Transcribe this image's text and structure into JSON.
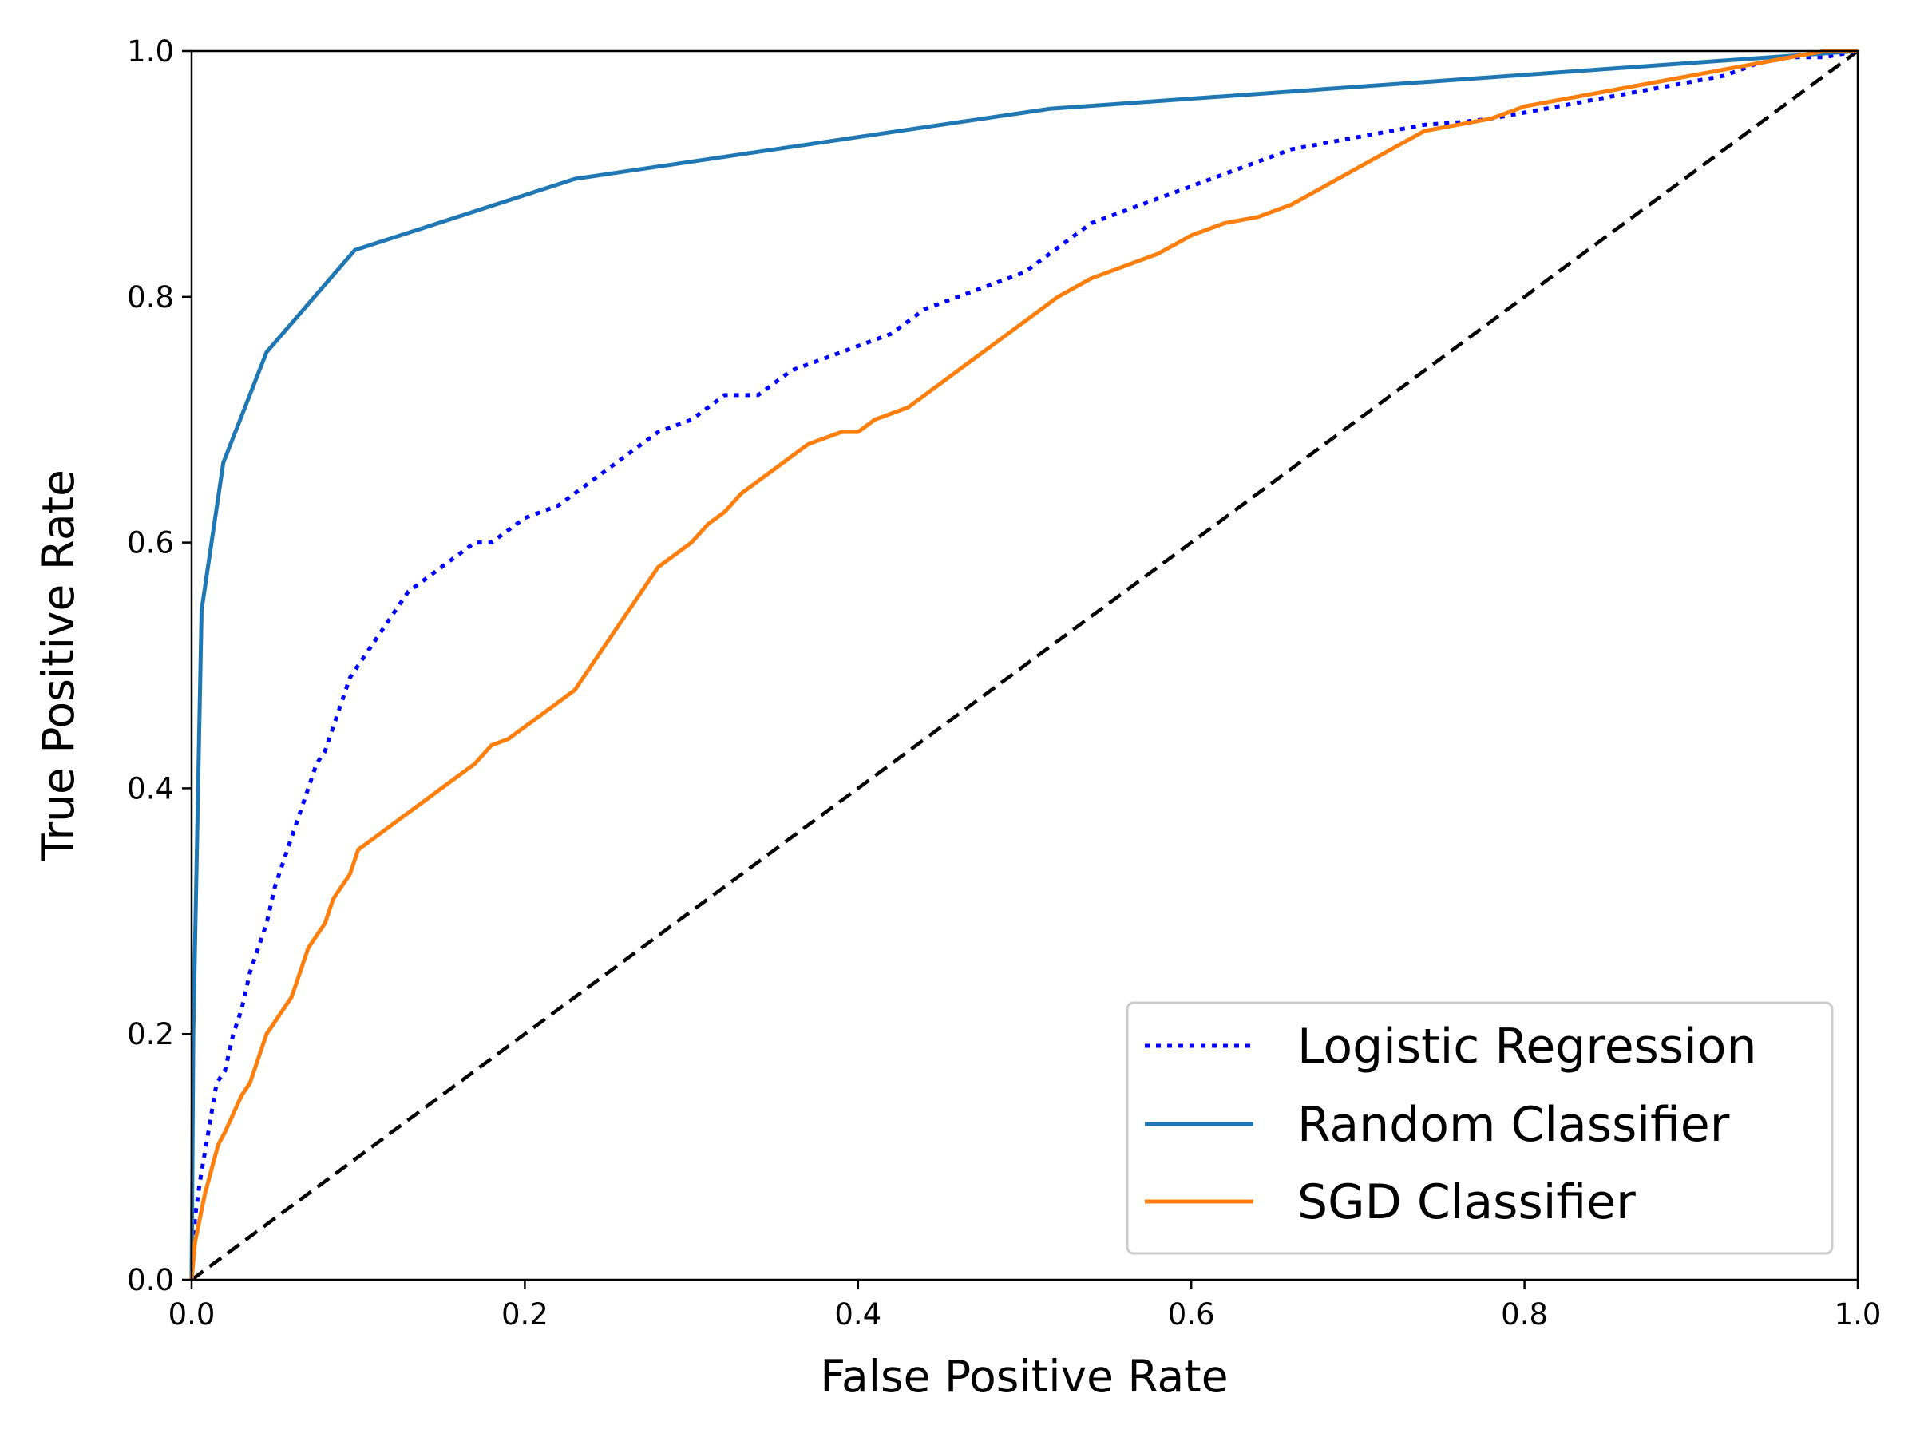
{
  "chart_data": {
    "type": "line",
    "title": "",
    "xlabel": "False Positive Rate",
    "ylabel": "True Positive Rate",
    "xlim": [
      0.0,
      1.0
    ],
    "ylim": [
      0.0,
      1.0
    ],
    "xticks": [
      "0.0",
      "0.2",
      "0.4",
      "0.6",
      "0.8",
      "1.0"
    ],
    "yticks": [
      "0.0",
      "0.2",
      "0.4",
      "0.6",
      "0.8",
      "1.0"
    ],
    "grid": false,
    "legend_position": "lower-right",
    "series": [
      {
        "name": "Logistic Regression",
        "color": "#0000ff",
        "style": "dotted",
        "x": [
          0,
          0.002,
          0.005,
          0.01,
          0.015,
          0.02,
          0.025,
          0.03,
          0.035,
          0.04,
          0.045,
          0.05,
          0.055,
          0.06,
          0.065,
          0.07,
          0.075,
          0.08,
          0.085,
          0.09,
          0.095,
          0.1,
          0.11,
          0.12,
          0.13,
          0.14,
          0.15,
          0.16,
          0.17,
          0.18,
          0.19,
          0.2,
          0.22,
          0.24,
          0.26,
          0.28,
          0.3,
          0.32,
          0.34,
          0.36,
          0.38,
          0.4,
          0.42,
          0.44,
          0.46,
          0.48,
          0.5,
          0.52,
          0.54,
          0.56,
          0.58,
          0.6,
          0.62,
          0.64,
          0.66,
          0.68,
          0.7,
          0.72,
          0.74,
          0.76,
          0.78,
          0.8,
          0.82,
          0.84,
          0.86,
          0.88,
          0.9,
          0.92,
          0.94,
          0.96,
          0.98,
          1.0
        ],
        "y": [
          0,
          0.05,
          0.08,
          0.12,
          0.16,
          0.17,
          0.2,
          0.22,
          0.25,
          0.27,
          0.29,
          0.32,
          0.34,
          0.36,
          0.38,
          0.4,
          0.42,
          0.43,
          0.45,
          0.47,
          0.49,
          0.5,
          0.52,
          0.54,
          0.56,
          0.57,
          0.58,
          0.59,
          0.6,
          0.6,
          0.61,
          0.62,
          0.63,
          0.65,
          0.67,
          0.69,
          0.7,
          0.72,
          0.72,
          0.74,
          0.75,
          0.76,
          0.77,
          0.79,
          0.8,
          0.81,
          0.82,
          0.84,
          0.86,
          0.87,
          0.88,
          0.89,
          0.9,
          0.91,
          0.92,
          0.925,
          0.93,
          0.935,
          0.94,
          0.942,
          0.945,
          0.95,
          0.955,
          0.96,
          0.965,
          0.97,
          0.975,
          0.98,
          0.99,
          0.995,
          0.995,
          1.0
        ]
      },
      {
        "name": "Random Classifier",
        "color": "#1f77b4",
        "style": "solid",
        "x": [
          0,
          0.001,
          0.006,
          0.019,
          0.045,
          0.098,
          0.23,
          0.515,
          1.0
        ],
        "y": [
          0,
          0.2,
          0.545,
          0.665,
          0.755,
          0.838,
          0.896,
          0.953,
          1.0
        ]
      },
      {
        "name": "SGD Classifier",
        "color": "#ff7f0e",
        "style": "solid",
        "x": [
          0,
          0.002,
          0.005,
          0.008,
          0.012,
          0.016,
          0.02,
          0.025,
          0.03,
          0.035,
          0.04,
          0.045,
          0.05,
          0.055,
          0.06,
          0.065,
          0.07,
          0.075,
          0.08,
          0.085,
          0.09,
          0.095,
          0.1,
          0.11,
          0.12,
          0.13,
          0.14,
          0.15,
          0.16,
          0.17,
          0.18,
          0.19,
          0.2,
          0.21,
          0.22,
          0.23,
          0.24,
          0.25,
          0.26,
          0.27,
          0.28,
          0.29,
          0.3,
          0.31,
          0.32,
          0.33,
          0.34,
          0.35,
          0.36,
          0.37,
          0.38,
          0.39,
          0.4,
          0.41,
          0.42,
          0.43,
          0.44,
          0.45,
          0.46,
          0.47,
          0.48,
          0.49,
          0.5,
          0.52,
          0.54,
          0.56,
          0.58,
          0.6,
          0.62,
          0.64,
          0.66,
          0.68,
          0.7,
          0.72,
          0.74,
          0.76,
          0.78,
          0.8,
          0.82,
          0.84,
          0.86,
          0.88,
          0.9,
          0.92,
          0.94,
          0.96,
          0.98,
          1.0
        ],
        "y": [
          0,
          0.03,
          0.05,
          0.07,
          0.09,
          0.11,
          0.12,
          0.135,
          0.15,
          0.16,
          0.18,
          0.2,
          0.21,
          0.22,
          0.23,
          0.25,
          0.27,
          0.28,
          0.29,
          0.31,
          0.32,
          0.33,
          0.35,
          0.36,
          0.37,
          0.38,
          0.39,
          0.4,
          0.41,
          0.42,
          0.435,
          0.44,
          0.45,
          0.46,
          0.47,
          0.48,
          0.5,
          0.52,
          0.54,
          0.56,
          0.58,
          0.59,
          0.6,
          0.615,
          0.625,
          0.64,
          0.65,
          0.66,
          0.67,
          0.68,
          0.685,
          0.69,
          0.69,
          0.7,
          0.705,
          0.71,
          0.72,
          0.73,
          0.74,
          0.75,
          0.76,
          0.77,
          0.78,
          0.8,
          0.815,
          0.825,
          0.835,
          0.85,
          0.86,
          0.865,
          0.875,
          0.89,
          0.905,
          0.92,
          0.935,
          0.94,
          0.945,
          0.955,
          0.96,
          0.965,
          0.97,
          0.975,
          0.98,
          0.985,
          0.99,
          0.995,
          1.0,
          1.0
        ]
      }
    ],
    "reference_line": {
      "color": "#000000",
      "style": "dashed",
      "x": [
        0,
        1
      ],
      "y": [
        0,
        1
      ]
    }
  }
}
